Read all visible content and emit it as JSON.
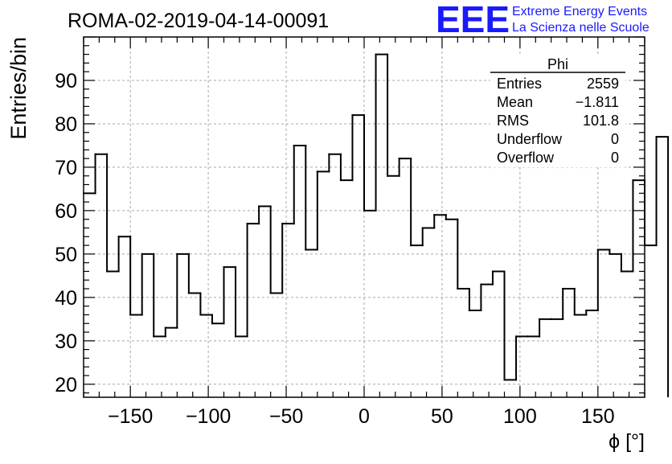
{
  "chart_data": {
    "type": "bar",
    "style": "step-histogram",
    "title": "ROMA-02-2019-04-14-00091",
    "xlabel": "ϕ [°]",
    "ylabel": "Entries/bin",
    "xlim": [
      -180,
      180
    ],
    "ylim": [
      17,
      100
    ],
    "grid": true,
    "x_ticks": [
      -150,
      -100,
      -50,
      0,
      50,
      100,
      150
    ],
    "y_ticks": [
      20,
      30,
      40,
      50,
      60,
      70,
      80,
      90
    ],
    "bin_width": 7.5,
    "bin_edges_start": -180,
    "values": [
      64,
      73,
      46,
      54,
      36,
      50,
      31,
      33,
      50,
      41,
      36,
      34,
      47,
      31,
      57,
      61,
      41,
      57,
      75,
      51,
      69,
      73,
      67,
      82,
      60,
      96,
      68,
      72,
      52,
      56,
      59,
      58,
      42,
      37,
      43,
      46,
      21,
      31,
      31,
      35,
      35,
      42,
      36,
      37,
      51,
      50,
      46,
      67,
      52,
      77
    ],
    "line_color": "#000000",
    "stats_box": {
      "title": "Phi",
      "rows": [
        {
          "label": "Entries",
          "value": "2559"
        },
        {
          "label": "Mean",
          "value": "−1.811"
        },
        {
          "label": "RMS",
          "value": "101.8"
        },
        {
          "label": "Underflow",
          "value": "0"
        },
        {
          "label": "Overflow",
          "value": "0"
        }
      ]
    }
  },
  "logo": {
    "mark": "EEE",
    "line1": "Extreme Energy Events",
    "line2": "La Scienza nelle Scuole",
    "color": "#1a1aff"
  }
}
